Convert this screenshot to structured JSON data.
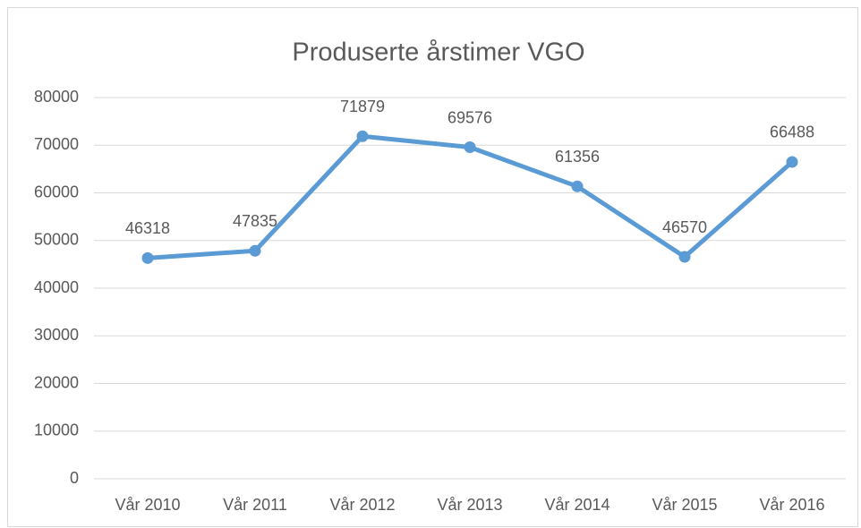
{
  "chart_data": {
    "type": "line",
    "title": "Produserte årstimer VGO",
    "categories": [
      "Vår 2010",
      "Vår 2011",
      "Vår 2012",
      "Vår 2013",
      "Vår 2014",
      "Vår 2015",
      "Vår 2016"
    ],
    "series": [
      {
        "name": "Produserte årstimer",
        "color": "#5b9bd5",
        "values": [
          46318,
          47835,
          71879,
          69576,
          61356,
          46570,
          66488
        ]
      }
    ],
    "ylim": [
      0,
      80000
    ],
    "yticks": [
      0,
      10000,
      20000,
      30000,
      40000,
      50000,
      60000,
      70000,
      80000
    ],
    "grid": true,
    "legend": false
  }
}
